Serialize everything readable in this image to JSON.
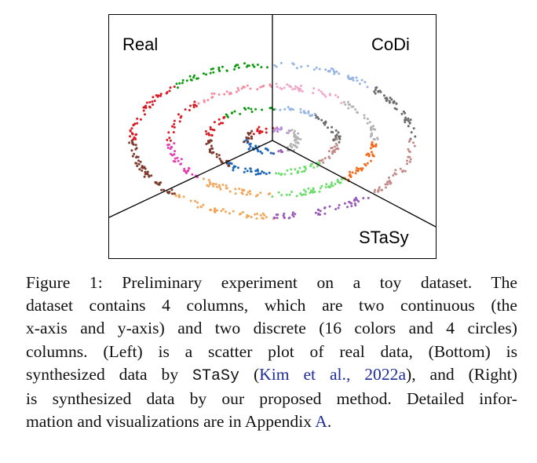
{
  "figure": {
    "labels": {
      "real": "Real",
      "codi": "CoDi",
      "stasy": "STaSy"
    },
    "colors": {
      "palette": [
        "#6a6a6a",
        "#b3b3b3",
        "#c48a8a",
        "#f26b1d",
        "#9a5bb8",
        "#6edc6e",
        "#1c66b5",
        "#f2a65a",
        "#e33fb0",
        "#7d3a2d",
        "#d81b25",
        "#f58ca0",
        "#f0a8c8",
        "#109a10",
        "#95b4e4",
        "#b98fd6"
      ],
      "divider": "#000000",
      "border": "#000000"
    }
  },
  "caption": {
    "l1a": "Figure 1:  Preliminary experiment on a toy dataset.  The",
    "l2": "dataset contains 4 columns, which are two continuous (the",
    "l3": "x-axis and y-axis) and two discrete (16 colors and 4 circles)",
    "l4": "columns.  (Left) is a scatter plot of real data, (Bottom) is",
    "l5a": "synthesized data by ",
    "l5_code": "STaSy",
    "l5b": " (",
    "l5_cite": "Kim et al., 2022a",
    "l5c": "), and (Right)",
    "l6": "is synthesized data by our proposed method. Detailed infor-",
    "l7a": "mation and visualizations are in Appendix ",
    "l7_link": "A",
    "l7b": "."
  }
}
